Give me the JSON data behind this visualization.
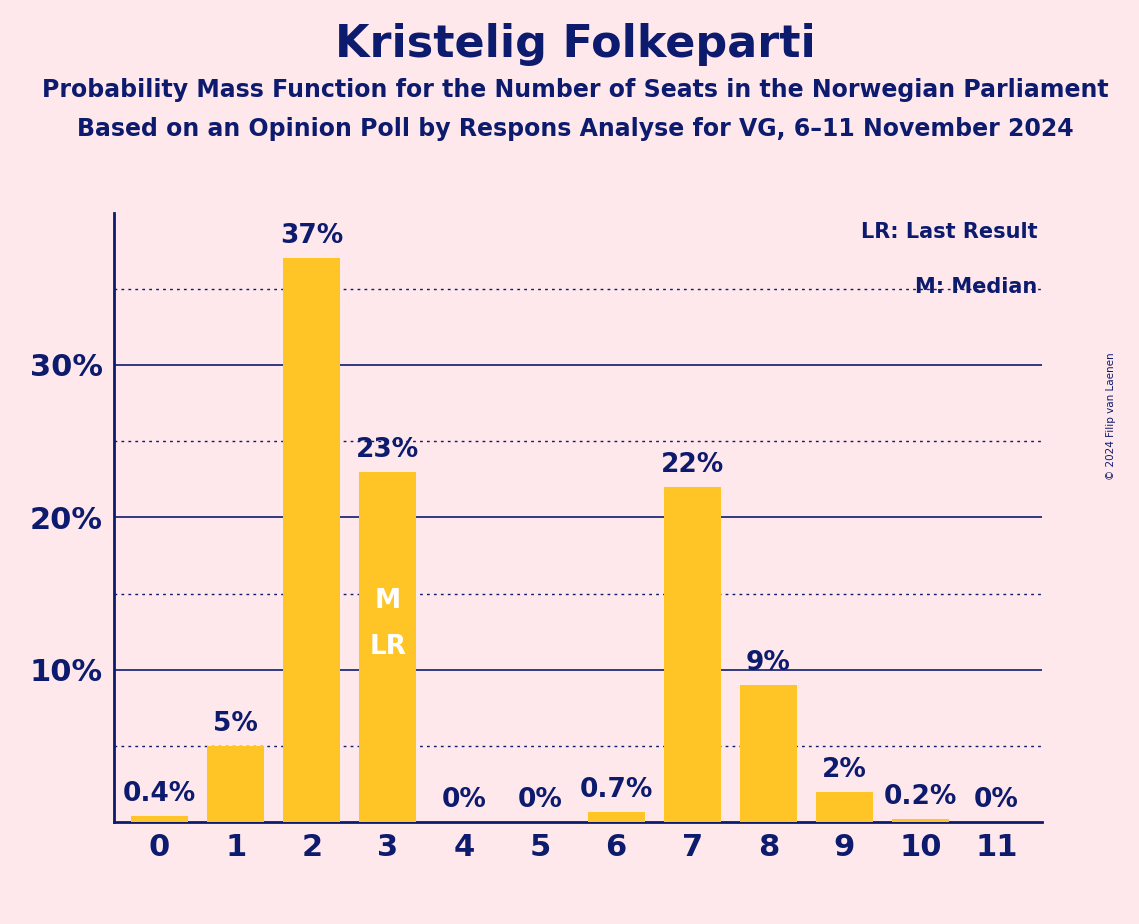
{
  "title": "Kristelig Folkeparti",
  "subtitle1": "Probability Mass Function for the Number of Seats in the Norwegian Parliament",
  "subtitle2": "Based on an Opinion Poll by Respons Analyse for VG, 6–11 November 2024",
  "copyright": "© 2024 Filip van Laenen",
  "categories": [
    0,
    1,
    2,
    3,
    4,
    5,
    6,
    7,
    8,
    9,
    10,
    11
  ],
  "values": [
    0.4,
    5,
    37,
    23,
    0,
    0,
    0.7,
    22,
    9,
    2,
    0.2,
    0
  ],
  "bar_color": "#FFC425",
  "background_color": "#FFE8EC",
  "text_color": "#0D1B6E",
  "grid_solid_at": [
    10,
    20,
    30
  ],
  "grid_dotted_at": [
    5,
    15,
    25,
    35
  ],
  "ylim": [
    0,
    40
  ],
  "yticks": [
    10,
    20,
    30
  ],
  "median_bar": 3,
  "lr_bar": 3,
  "legend_lr": "LR: Last Result",
  "legend_m": "M: Median",
  "title_fontsize": 32,
  "subtitle_fontsize": 17,
  "bar_label_fontsize": 19,
  "inside_label_fontsize": 19,
  "ytick_fontsize": 22,
  "xtick_fontsize": 22
}
